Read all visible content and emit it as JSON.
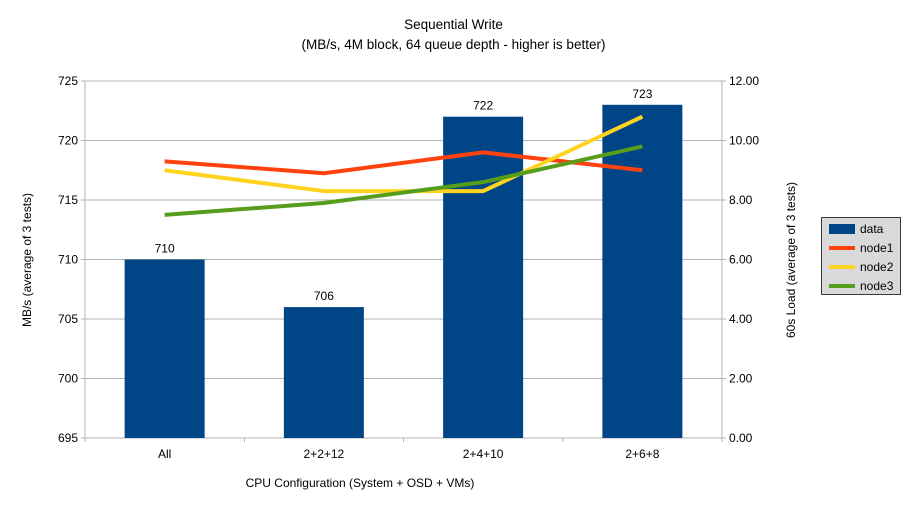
{
  "chart_data": {
    "type": "bar",
    "title": "Sequential Write",
    "subtitle": "(MB/s, 4M block, 64 queue depth - higher is better)",
    "categories": [
      "All",
      "2+2+12",
      "2+4+10",
      "2+6+8"
    ],
    "series": [
      {
        "name": "data",
        "type": "bar",
        "axis": "left",
        "color": "#004586",
        "values": [
          710,
          706,
          722,
          723
        ],
        "data_labels": [
          "710",
          "706",
          "722",
          "723"
        ]
      },
      {
        "name": "node1",
        "type": "line",
        "axis": "right",
        "color": "#ff420e",
        "values": [
          9.3,
          8.9,
          9.6,
          9.0
        ]
      },
      {
        "name": "node2",
        "type": "line",
        "axis": "right",
        "color": "#ffd320",
        "values": [
          9.0,
          8.3,
          8.3,
          10.8
        ]
      },
      {
        "name": "node3",
        "type": "line",
        "axis": "right",
        "color": "#579d1c",
        "values": [
          7.5,
          7.9,
          8.6,
          9.8
        ]
      }
    ],
    "left_axis": {
      "title": "MB/s (average of 3 tests)",
      "min": 695,
      "max": 725,
      "step": 5,
      "tick_labels": [
        "695",
        "700",
        "705",
        "710",
        "715",
        "720",
        "725"
      ]
    },
    "right_axis": {
      "title": "60s Load (average of 3 tests)",
      "min": 0,
      "max": 12,
      "step": 2,
      "tick_labels": [
        "0.00",
        "2.00",
        "4.00",
        "6.00",
        "8.00",
        "10.00",
        "12.00"
      ]
    },
    "x_axis": {
      "title": "CPU Configuration (System + OSD + VMs)"
    },
    "legend": {
      "position": "right",
      "background": "#d9d9d9",
      "border_color": "#3a3a3a"
    },
    "grid": {
      "horizontal": true,
      "vertical": false,
      "color": "#b3b3b3"
    },
    "background": "#ffffff",
    "text_color": "#000000"
  }
}
